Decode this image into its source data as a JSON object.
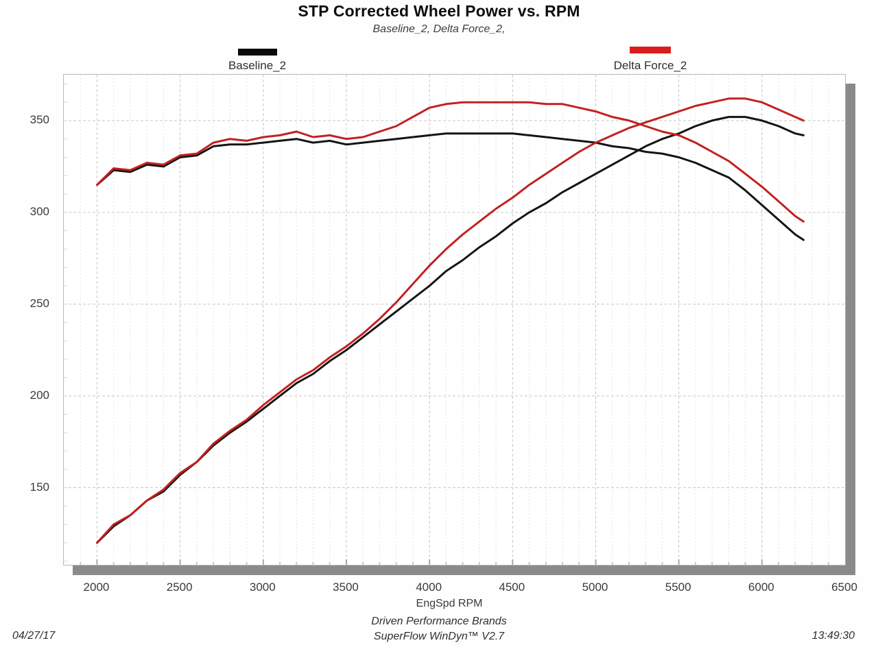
{
  "title": "STP Corrected Wheel Power vs. RPM",
  "subtitle": "Baseline_2, Delta Force_2,",
  "legend": {
    "baseline": {
      "label": "Baseline_2",
      "color": "#0a0a0a"
    },
    "delta": {
      "label": "Delta Force_2",
      "color": "#dc1c1c"
    }
  },
  "footer": {
    "date": "04/27/17",
    "time": "13:49:30",
    "brand": "Driven Performance Brands",
    "software": "SuperFlow WinDyn™ V2.7"
  },
  "chart_data": {
    "type": "line",
    "title": "STP Corrected Wheel Power vs. RPM",
    "subtitle": "Baseline_2, Delta Force_2,",
    "xlabel": "EngSpd RPM",
    "ylabel": "",
    "xlim": [
      1800,
      6500
    ],
    "ylim": [
      108,
      375
    ],
    "x_ticks": [
      2000,
      2500,
      3000,
      3500,
      4000,
      4500,
      5000,
      5500,
      6000,
      6500
    ],
    "y_ticks": [
      150,
      200,
      250,
      300,
      350
    ],
    "x_minor_step": 100,
    "grid": true,
    "legend_position": "top",
    "colors": {
      "baseline": "#141414",
      "delta": "#c32020",
      "grid_major": "#c6c6c6",
      "grid_minor": "#e2e2e2"
    },
    "x": [
      2000,
      2100,
      2200,
      2300,
      2400,
      2500,
      2600,
      2700,
      2800,
      2900,
      3000,
      3100,
      3200,
      3300,
      3400,
      3500,
      3600,
      3700,
      3800,
      3900,
      4000,
      4100,
      4200,
      4300,
      4400,
      4500,
      4600,
      4700,
      4800,
      4900,
      5000,
      5100,
      5200,
      5300,
      5400,
      5500,
      5600,
      5700,
      5800,
      5900,
      6000,
      6100,
      6200,
      6250
    ],
    "series": [
      {
        "name": "Baseline_2 torque",
        "run": "Baseline_2",
        "color": "#141414",
        "values": [
          315,
          323,
          322,
          326,
          325,
          330,
          331,
          336,
          337,
          337,
          338,
          339,
          340,
          338,
          339,
          337,
          338,
          339,
          340,
          341,
          342,
          343,
          343,
          343,
          343,
          343,
          342,
          341,
          340,
          339,
          338,
          336,
          335,
          333,
          332,
          330,
          327,
          323,
          319,
          312,
          304,
          296,
          288,
          285
        ]
      },
      {
        "name": "Baseline_2 power",
        "run": "Baseline_2",
        "color": "#141414",
        "values": [
          120,
          129,
          135,
          143,
          148,
          157,
          164,
          173,
          180,
          186,
          193,
          200,
          207,
          212,
          219,
          225,
          232,
          239,
          246,
          253,
          260,
          268,
          274,
          281,
          287,
          294,
          300,
          305,
          311,
          316,
          321,
          326,
          331,
          336,
          340,
          343,
          347,
          350,
          352,
          352,
          350,
          347,
          343,
          342
        ]
      },
      {
        "name": "Delta Force_2 torque",
        "run": "Delta Force_2",
        "color": "#c32020",
        "values": [
          315,
          324,
          323,
          327,
          326,
          331,
          332,
          338,
          340,
          339,
          341,
          342,
          344,
          341,
          342,
          340,
          341,
          344,
          347,
          352,
          357,
          359,
          360,
          360,
          360,
          360,
          360,
          359,
          359,
          357,
          355,
          352,
          350,
          347,
          344,
          342,
          338,
          333,
          328,
          321,
          314,
          306,
          298,
          295
        ]
      },
      {
        "name": "Delta Force_2 power",
        "run": "Delta Force_2",
        "color": "#c32020",
        "values": [
          120,
          130,
          135,
          143,
          149,
          158,
          164,
          174,
          181,
          187,
          195,
          202,
          209,
          214,
          221,
          227,
          234,
          242,
          251,
          261,
          271,
          280,
          288,
          295,
          302,
          308,
          315,
          321,
          327,
          333,
          338,
          342,
          346,
          349,
          352,
          355,
          358,
          360,
          362,
          362,
          360,
          356,
          352,
          350
        ]
      }
    ]
  }
}
